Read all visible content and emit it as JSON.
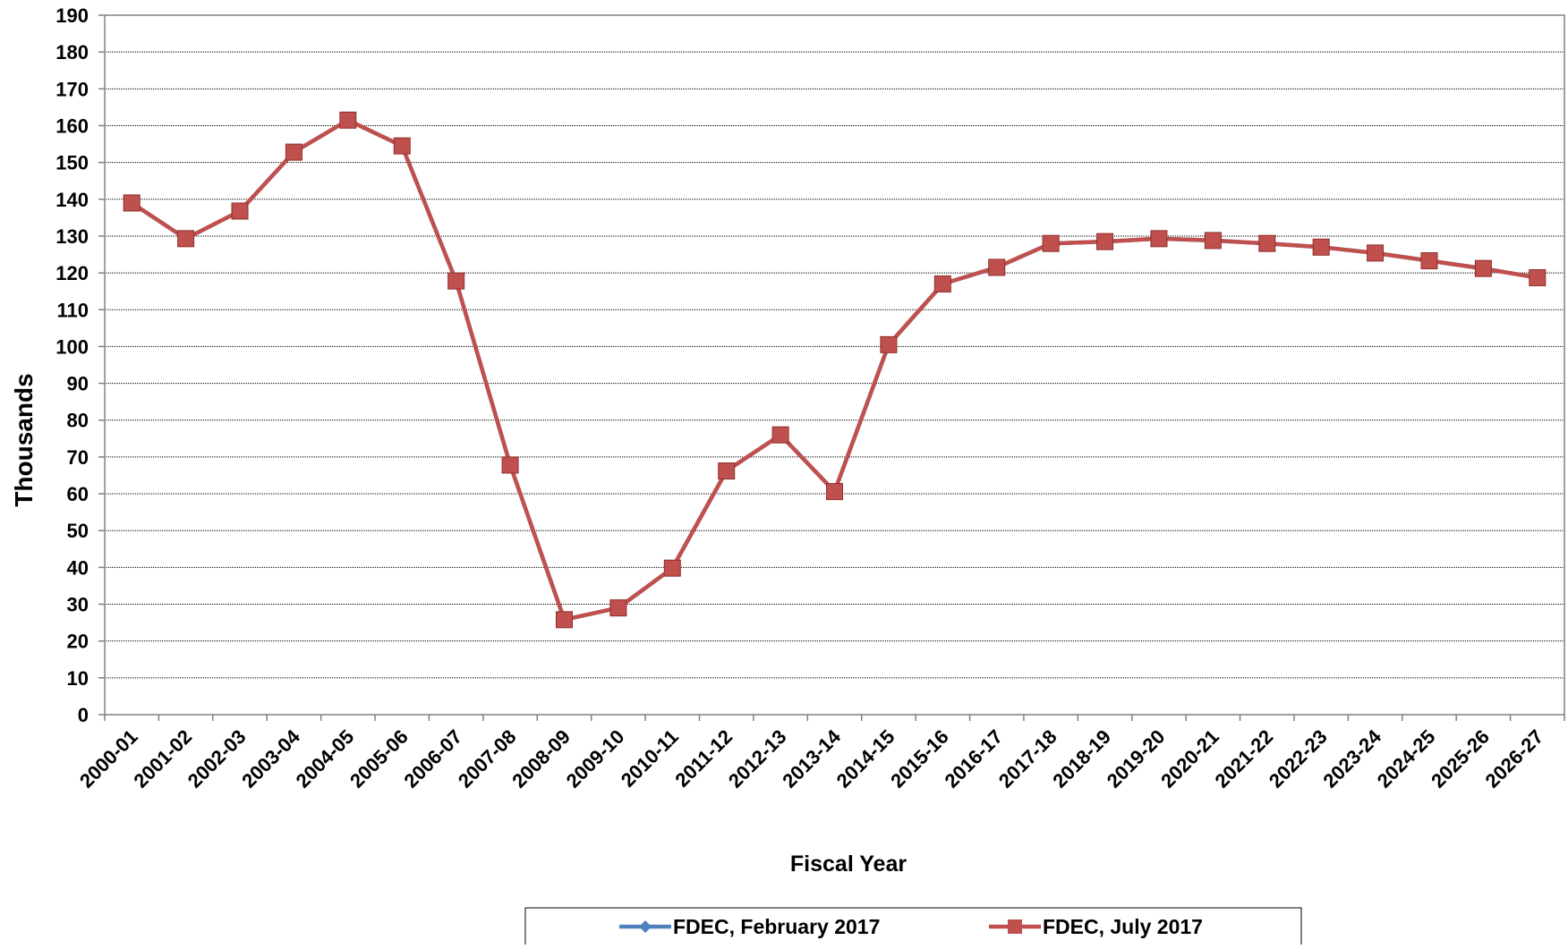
{
  "chart_data": {
    "type": "line",
    "title": "",
    "xlabel": "Fiscal Year",
    "ylabel": "Thousands",
    "ylim": [
      0,
      190
    ],
    "ytick_step": 10,
    "grid": true,
    "legend_position": "bottom",
    "categories": [
      "2000-01",
      "2001-02",
      "2002-03",
      "2003-04",
      "2004-05",
      "2005-06",
      "2006-07",
      "2007-08",
      "2008-09",
      "2009-10",
      "2010-11",
      "2011-12",
      "2012-13",
      "2013-14",
      "2014-15",
      "2015-16",
      "2016-17",
      "2017-18",
      "2018-19",
      "2019-20",
      "2020-21",
      "2021-22",
      "2022-23",
      "2023-24",
      "2024-25",
      "2025-26",
      "2026-27"
    ],
    "series": [
      {
        "name": "FDEC, February 2017",
        "color": "#4F81BD",
        "marker": "diamond",
        "values": [
          139.0,
          129.3,
          136.8,
          152.8,
          161.5,
          154.5,
          117.8,
          67.8,
          25.8,
          29.0,
          39.8,
          66.2,
          76.0,
          60.6,
          100.5,
          117.0,
          121.5,
          128.0,
          128.5,
          129.3,
          128.8,
          128.0,
          127.0,
          125.4,
          123.3,
          121.2,
          118.7
        ]
      },
      {
        "name": "FDEC, July 2017",
        "color": "#C0504D",
        "marker": "square",
        "values": [
          139.0,
          129.3,
          136.8,
          152.8,
          161.5,
          154.5,
          117.8,
          67.8,
          25.8,
          29.0,
          39.8,
          66.2,
          76.0,
          60.6,
          100.5,
          117.0,
          121.5,
          128.0,
          128.5,
          129.3,
          128.8,
          128.0,
          127.0,
          125.4,
          123.3,
          121.2,
          118.7
        ]
      }
    ]
  },
  "colors": {
    "grid": "#000000",
    "axis": "#808080"
  }
}
